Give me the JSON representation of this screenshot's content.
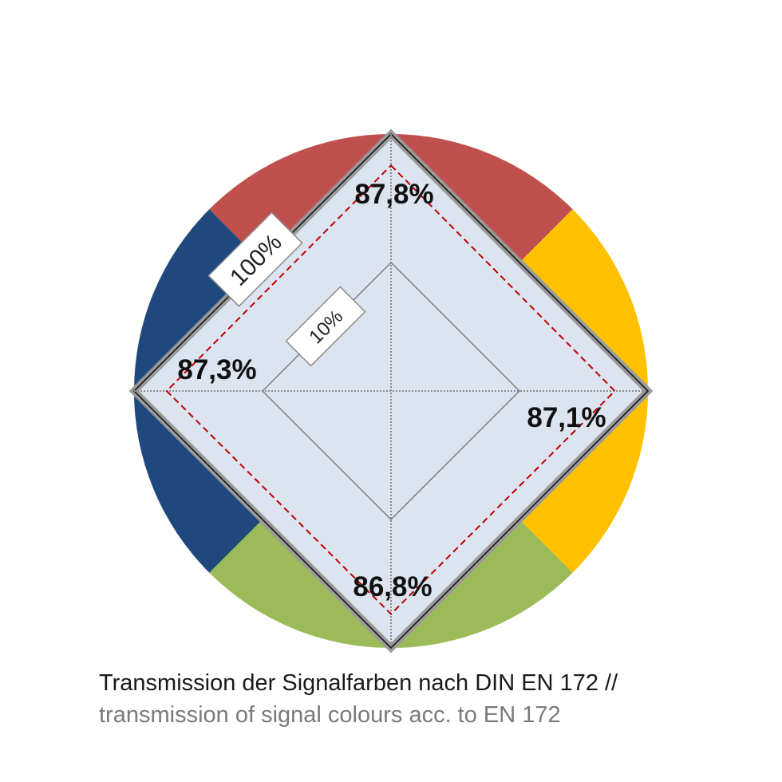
{
  "chart_data": {
    "type": "radar",
    "axes": [
      "red",
      "yellow",
      "green",
      "blue"
    ],
    "values": [
      87.8,
      87.1,
      86.8,
      87.3
    ],
    "value_labels": [
      "87,8%",
      "87,1%",
      "86,8%",
      "87,3%"
    ],
    "range": [
      0,
      100
    ],
    "rings": [
      {
        "value": 10,
        "label": "10%"
      },
      {
        "value": 100,
        "label": "100%"
      }
    ],
    "segment_colors": {
      "red": "#C0504D",
      "yellow": "#FFC000",
      "green": "#9BBB59",
      "blue": "#1F497D"
    },
    "fill_color": "#DCE4F0",
    "series_line_color": "#C00000"
  },
  "caption": {
    "de": "Transmission der Signalfarben nach DIN EN 172 //",
    "en": "transmission of signal colours acc. to EN 172"
  }
}
